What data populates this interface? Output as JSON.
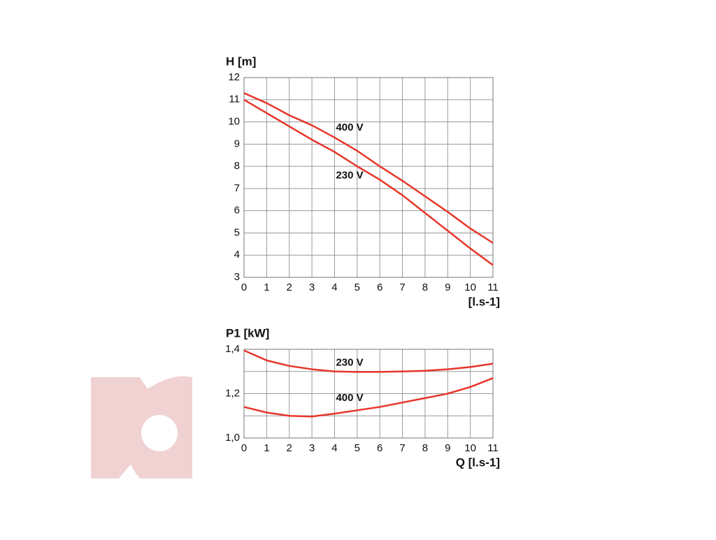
{
  "chart_data": [
    {
      "type": "line",
      "ylabel": "H [m]",
      "xlabel": "[l.s-1]",
      "x": [
        0,
        1,
        2,
        3,
        4,
        5,
        6,
        7,
        8,
        9,
        10,
        11
      ],
      "series": [
        {
          "name": "400 V",
          "color": "#e8352a",
          "values": [
            11.3,
            10.85,
            10.3,
            9.85,
            9.3,
            8.7,
            8.0,
            7.35,
            6.65,
            5.95,
            5.2,
            4.55
          ]
        },
        {
          "name": "230 V",
          "color": "#e8352a",
          "values": [
            11.0,
            10.4,
            9.8,
            9.2,
            8.65,
            8.0,
            7.4,
            6.7,
            5.9,
            5.1,
            4.3,
            3.55
          ]
        }
      ],
      "xlim": [
        0,
        11
      ],
      "xticks": [
        0,
        1,
        2,
        3,
        4,
        5,
        6,
        7,
        8,
        9,
        10,
        11
      ],
      "ylim": [
        3,
        12
      ],
      "yticks": [
        3,
        4,
        5,
        6,
        7,
        8,
        9,
        10,
        11,
        12
      ],
      "grid": true
    },
    {
      "type": "line",
      "ylabel": "P1 [kW]",
      "xlabel": "Q [l.s-1]",
      "x": [
        0,
        1,
        2,
        3,
        4,
        5,
        6,
        7,
        8,
        9,
        10,
        11
      ],
      "series": [
        {
          "name": "230 V",
          "color": "#e8352a",
          "values": [
            1.395,
            1.35,
            1.325,
            1.31,
            1.3,
            1.298,
            1.298,
            1.3,
            1.303,
            1.31,
            1.32,
            1.335
          ]
        },
        {
          "name": "400 V",
          "color": "#e8352a",
          "values": [
            1.14,
            1.115,
            1.1,
            1.097,
            1.11,
            1.125,
            1.14,
            1.16,
            1.18,
            1.2,
            1.23,
            1.27
          ]
        }
      ],
      "xlim": [
        0,
        11
      ],
      "xticks": [
        0,
        1,
        2,
        3,
        4,
        5,
        6,
        7,
        8,
        9,
        10,
        11
      ],
      "ylim": [
        1.0,
        1.4
      ],
      "yticks": [
        {
          "value": 1.0,
          "label": "1,0"
        },
        {
          "value": 1.2,
          "label": "1,2"
        },
        {
          "value": 1.4,
          "label": "1,4"
        }
      ],
      "minor_yticks": [
        1.1,
        1.3
      ],
      "grid": true
    }
  ]
}
